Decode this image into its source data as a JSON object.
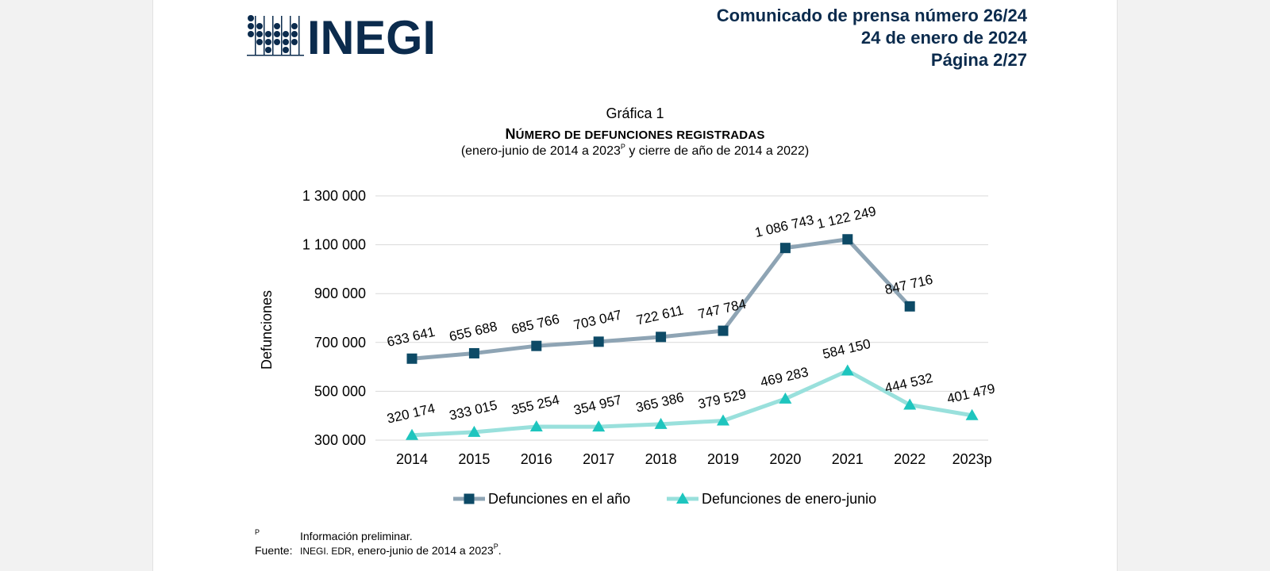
{
  "header": {
    "logo_text": "INEGI",
    "press_lines": [
      "Comunicado de prensa número 26/24",
      "24 de enero de 2024",
      "Página 2/27"
    ]
  },
  "chart_heading": {
    "label": "Gráfica 1",
    "title_first": "N",
    "title_rest": "ÚMERO DE DEFUNCIONES REGISTRADAS",
    "subtitle_before": "(enero-junio de 2014 a 2023",
    "subtitle_sup": "P",
    "subtitle_after": " y cierre de año de 2014 a 2022)"
  },
  "colors": {
    "press_text": "#0b2b4d",
    "series1_line": "#8ea4b4",
    "series1_marker": "#0d4a66",
    "series2_line": "#99e0dc",
    "series2_marker": "#1ec5be",
    "grid": "#d9d9d9",
    "logo": "#0b2b4d"
  },
  "chart_data": {
    "type": "line",
    "categories": [
      "2014",
      "2015",
      "2016",
      "2017",
      "2018",
      "2019",
      "2020",
      "2021",
      "2022",
      "2023p"
    ],
    "ylabel": "Defunciones",
    "ylim": [
      300000,
      1300000
    ],
    "yticks": [
      300000,
      500000,
      700000,
      900000,
      1100000,
      1300000
    ],
    "ytick_labels": [
      "300 000",
      "500 000",
      "700 000",
      "900 000",
      "1 100 000",
      "1 300 000"
    ],
    "grid": true,
    "legend_position": "bottom",
    "series": [
      {
        "name": "Defunciones en el año",
        "marker": "square",
        "values": [
          633641,
          655688,
          685766,
          703047,
          722611,
          747784,
          1086743,
          1122249,
          847716,
          null
        ],
        "labels": [
          "633 641",
          "655 688",
          "685 766",
          "703 047",
          "722 611",
          "747 784",
          "1 086 743",
          "1 122 249",
          "847 716",
          null
        ]
      },
      {
        "name": "Defunciones de enero-junio",
        "marker": "triangle",
        "values": [
          320174,
          333015,
          355254,
          354957,
          365386,
          379529,
          469283,
          584150,
          444532,
          401479
        ],
        "labels": [
          "320 174",
          "333 015",
          "355 254",
          "354 957",
          "365 386",
          "379 529",
          "469 283",
          "584 150",
          "444 532",
          "401 479"
        ]
      }
    ]
  },
  "footnotes": {
    "mark": "P",
    "preliminary": "Información preliminar.",
    "source_label": "Fuente:",
    "source_org": "INEGI. EDR",
    "source_before_sup": ", enero-junio de 2014 a 2023",
    "source_sup": "P",
    "source_after": "."
  }
}
